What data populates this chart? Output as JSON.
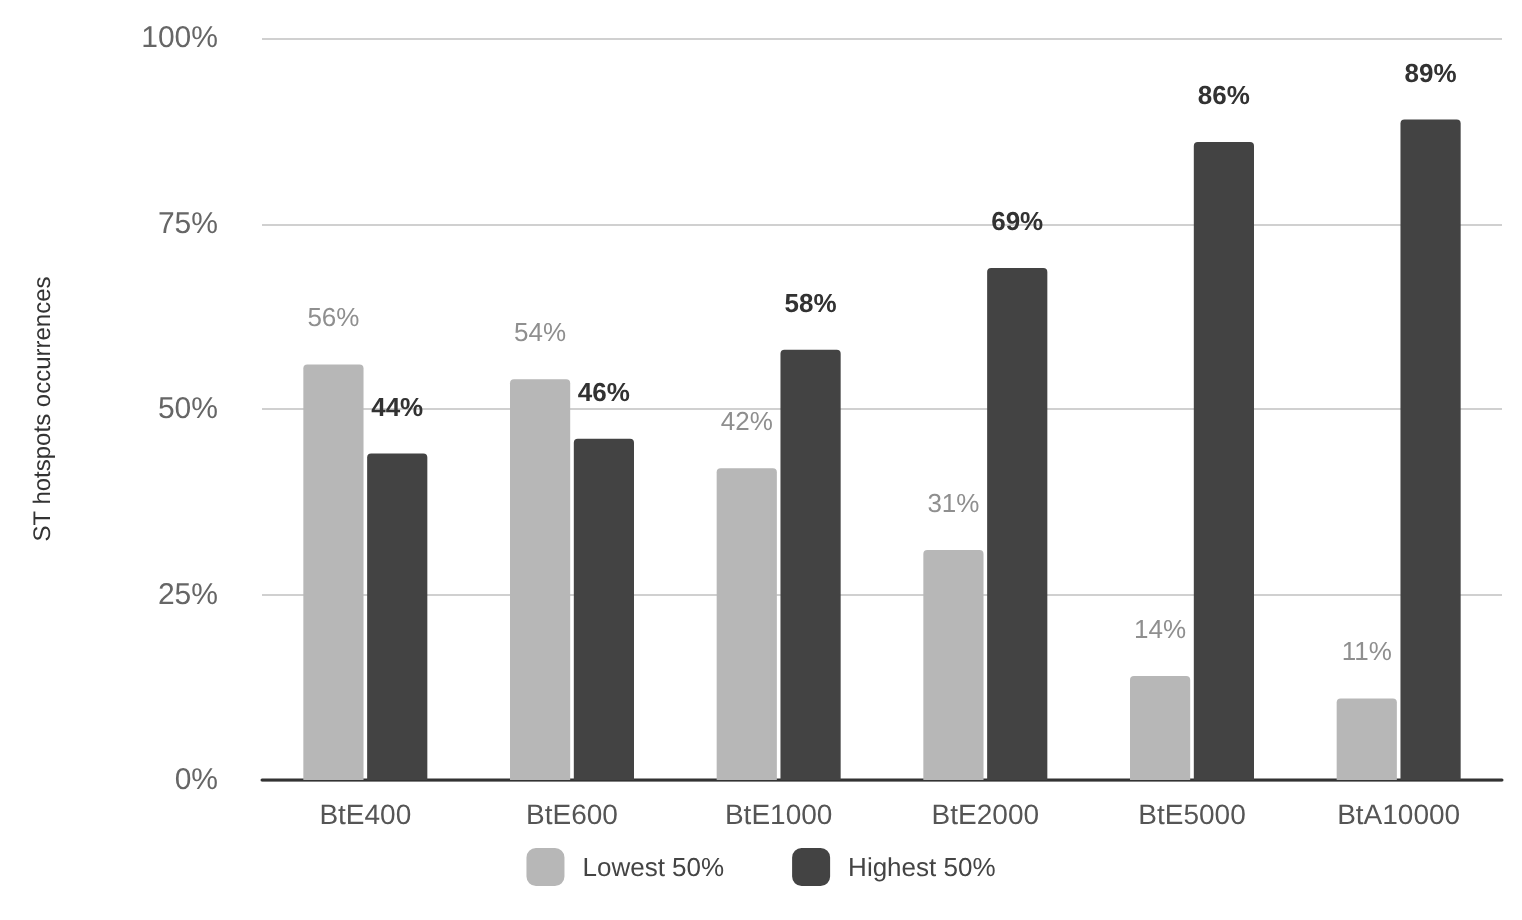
{
  "chart_data": {
    "type": "bar",
    "ylabel": "ST hotspots occurrences",
    "categories": [
      "BtE400",
      "BtE600",
      "BtE1000",
      "BtE2000",
      "BtE5000",
      "BtA10000"
    ],
    "series": [
      {
        "name": "Lowest 50%",
        "color": "#b7b7b7",
        "values": [
          56,
          54,
          42,
          31,
          14,
          11
        ],
        "value_labels": [
          "56%",
          "54%",
          "42%",
          "31%",
          "14%",
          "11%"
        ]
      },
      {
        "name": "Highest 50%",
        "color": "#434343",
        "values": [
          44,
          46,
          58,
          69,
          86,
          89
        ],
        "value_labels": [
          "44%",
          "46%",
          "58%",
          "69%",
          "86%",
          "89%"
        ]
      }
    ],
    "ylim": [
      0,
      100
    ],
    "yticks": [
      {
        "value": 0,
        "label": "0%"
      },
      {
        "value": 25,
        "label": "25%"
      },
      {
        "value": 50,
        "label": "50%"
      },
      {
        "value": 75,
        "label": "75%"
      },
      {
        "value": 100,
        "label": "100%"
      }
    ],
    "grid": "y",
    "legend": "bottom"
  }
}
